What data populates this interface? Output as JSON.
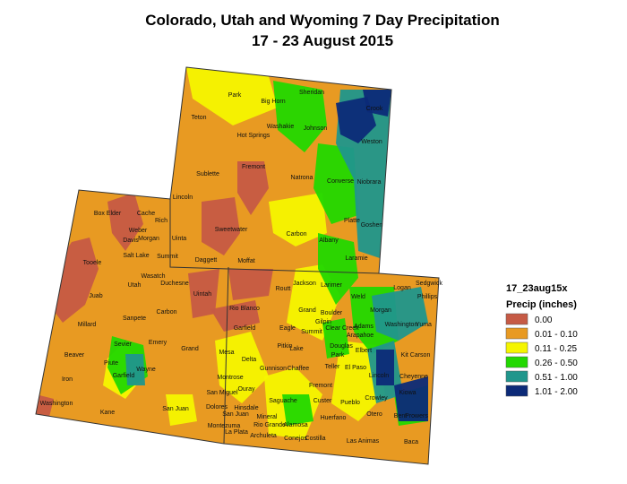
{
  "header": {
    "title": "Colorado, Utah and Wyoming 7 Day Precipitation",
    "subtitle": "17 - 23 August 2015"
  },
  "legend": {
    "title": "17_23aug15x",
    "subtitle": "Precip (inches)",
    "entries": [
      {
        "label": "0.00",
        "color": "#c65a45"
      },
      {
        "label": "0.01 - 0.10",
        "color": "#e89a22"
      },
      {
        "label": "0.11 - 0.25",
        "color": "#f5f500"
      },
      {
        "label": "0.26 - 0.50",
        "color": "#22d800"
      },
      {
        "label": "0.51 - 1.00",
        "color": "#20968c"
      },
      {
        "label": "1.01 - 2.00",
        "color": "#0c2a78"
      }
    ]
  },
  "counties": [
    "Park",
    "Big Horn",
    "Sheridan",
    "Crook",
    "Teton",
    "Washakie",
    "Johnson",
    "Hot Springs",
    "Weston",
    "Fremont",
    "Sublette",
    "Natrona",
    "Converse",
    "Niobrara",
    "Lincoln",
    "Sweetwater",
    "Carbon",
    "Platte",
    "Goshen",
    "Albany",
    "Laramie",
    "Uinta",
    "Daggett",
    "Box Elder",
    "Cache",
    "Rich",
    "Weber",
    "Davis",
    "Morgan",
    "Salt Lake",
    "Summit",
    "Tooele",
    "Wasatch",
    "Utah",
    "Duchesne",
    "Uintah",
    "Juab",
    "Carbon",
    "Sanpete",
    "Millard",
    "Emery",
    "Sevier",
    "Grand",
    "Beaver",
    "Piute",
    "Wayne",
    "Garfield",
    "Iron",
    "Washington",
    "Kane",
    "San Juan",
    "Moffat",
    "Routt",
    "Jackson",
    "Larimer",
    "Weld",
    "Logan",
    "Sedgwick",
    "Phillips",
    "Rio Blanco",
    "Grand",
    "Boulder",
    "Morgan",
    "Garfield",
    "Eagle",
    "Summit",
    "Gilpin",
    "Clear Creek",
    "Adams",
    "Washington",
    "Yuma",
    "Arapahoe",
    "Mesa",
    "Pitkin",
    "Lake",
    "Park",
    "Douglas",
    "Elbert",
    "Kit Carson",
    "Delta",
    "Gunnison",
    "Chaffee",
    "Teller",
    "El Paso",
    "Lincoln",
    "Cheyenne",
    "Montrose",
    "Fremont",
    "San Miguel",
    "Ouray",
    "Kiowa",
    "Crowley",
    "Saguache",
    "Custer",
    "Pueblo",
    "Dolores",
    "Hinsdale",
    "Mineral",
    "Rio Grande",
    "Alamosa",
    "Huerfano",
    "Otero",
    "Bent",
    "Prowers",
    "San Juan",
    "Montezuma",
    "La Plata",
    "Archuleta",
    "Conejos",
    "Costilla",
    "Las Animas",
    "Baca"
  ]
}
